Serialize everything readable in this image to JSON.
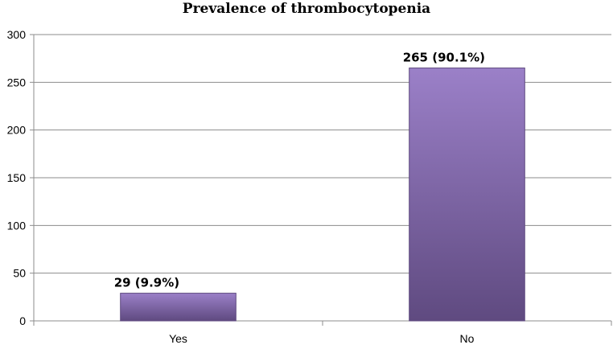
{
  "chart_data": {
    "type": "bar",
    "title": "Prevalence  of thrombocytopenia",
    "categories": [
      "Yes",
      "No"
    ],
    "values": [
      29,
      265
    ],
    "data_labels": [
      "29 (9.9%)",
      "265 (90.1%)"
    ],
    "xlabel": "",
    "ylabel": "",
    "ylim": [
      0,
      300
    ],
    "yticks": [
      0,
      50,
      100,
      150,
      200,
      250,
      300
    ],
    "grid": true,
    "legend": "none",
    "colors": {
      "bar": "#8064A2",
      "bar_light": "#9B80C8",
      "bar_dark": "#5F4A80",
      "grid": "#8C8C8C"
    }
  }
}
